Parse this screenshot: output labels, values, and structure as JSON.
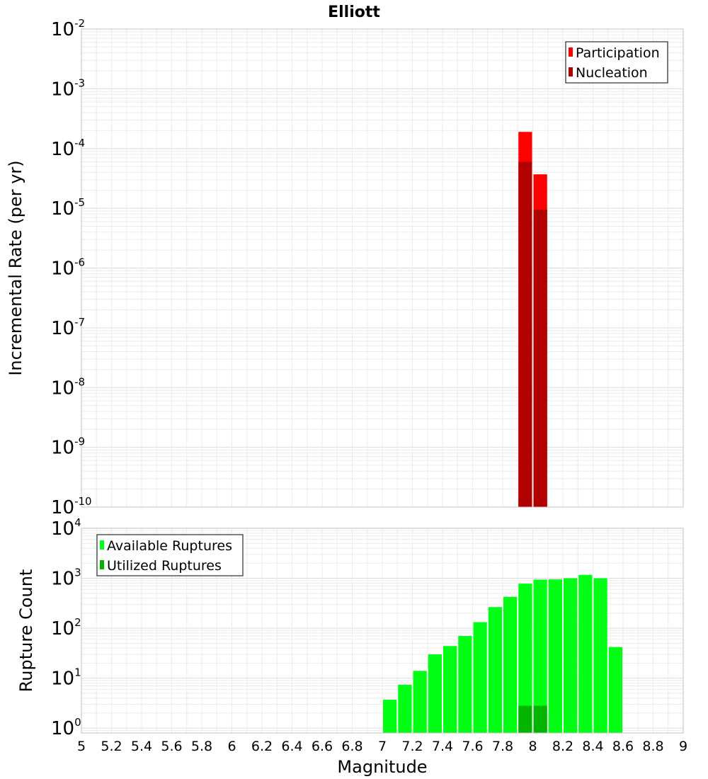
{
  "title": "Elliott",
  "xlabel": "Magnitude",
  "x_tick_labels": [
    "5",
    "5.2",
    "5.4",
    "5.6",
    "5.8",
    "6",
    "6.2",
    "6.4",
    "6.6",
    "6.8",
    "7",
    "7.2",
    "7.4",
    "7.6",
    "7.8",
    "8",
    "8.2",
    "8.4",
    "8.6",
    "8.8",
    "9"
  ],
  "colors": {
    "participation": "#ff0000",
    "nucleation": "#b00000",
    "available": "#00ff14",
    "utilized": "#00b400",
    "grid": "#ebebeb",
    "frame": "#c0c0c0"
  },
  "chart_data": [
    {
      "type": "bar",
      "scale": "log",
      "ylabel": "Incremental Rate (per yr)",
      "ylim": [
        1e-10,
        0.01
      ],
      "xlim": [
        5,
        9
      ],
      "bin_width": 0.1,
      "y_tick_labels": [
        {
          "base": "10",
          "exp": "-2"
        },
        {
          "base": "10",
          "exp": "-3"
        },
        {
          "base": "10",
          "exp": "-4"
        },
        {
          "base": "10",
          "exp": "-5"
        },
        {
          "base": "10",
          "exp": "-6"
        },
        {
          "base": "10",
          "exp": "-7"
        },
        {
          "base": "10",
          "exp": "-8"
        },
        {
          "base": "10",
          "exp": "-9"
        },
        {
          "base": "10",
          "exp": "-10"
        }
      ],
      "legend": {
        "position": "top-right",
        "entries": [
          "Participation",
          "Nucleation"
        ]
      },
      "series": [
        {
          "name": "Participation",
          "x": [
            7.95,
            8.05
          ],
          "values": [
            0.00019,
            3.7e-05
          ]
        },
        {
          "name": "Nucleation",
          "x": [
            7.95,
            8.05
          ],
          "values": [
            6e-05,
            9.5e-06
          ]
        }
      ]
    },
    {
      "type": "bar",
      "scale": "log",
      "ylabel": "Rupture Count",
      "ylim": [
        0.8,
        10000
      ],
      "xlim": [
        5,
        9
      ],
      "bin_width": 0.1,
      "y_tick_labels": [
        {
          "base": "10",
          "exp": "4"
        },
        {
          "base": "10",
          "exp": "3"
        },
        {
          "base": "10",
          "exp": "2"
        },
        {
          "base": "10",
          "exp": "1"
        },
        {
          "base": "10",
          "exp": "0"
        }
      ],
      "legend": {
        "position": "top-left",
        "entries": [
          "Available Ruptures",
          "Utilized Ruptures"
        ]
      },
      "series": [
        {
          "name": "Available Ruptures",
          "x": [
            7.05,
            7.15,
            7.25,
            7.35,
            7.45,
            7.55,
            7.65,
            7.75,
            7.85,
            7.95,
            8.05,
            8.15,
            8.25,
            8.35,
            8.45,
            8.55
          ],
          "values": [
            3.7,
            7.4,
            14,
            30,
            44,
            70,
            132,
            265,
            425,
            780,
            940,
            950,
            1000,
            1170,
            1000,
            42
          ]
        },
        {
          "name": "Utilized Ruptures",
          "x": [
            7.95,
            8.05
          ],
          "values": [
            2.8,
            2.8
          ]
        }
      ]
    }
  ]
}
